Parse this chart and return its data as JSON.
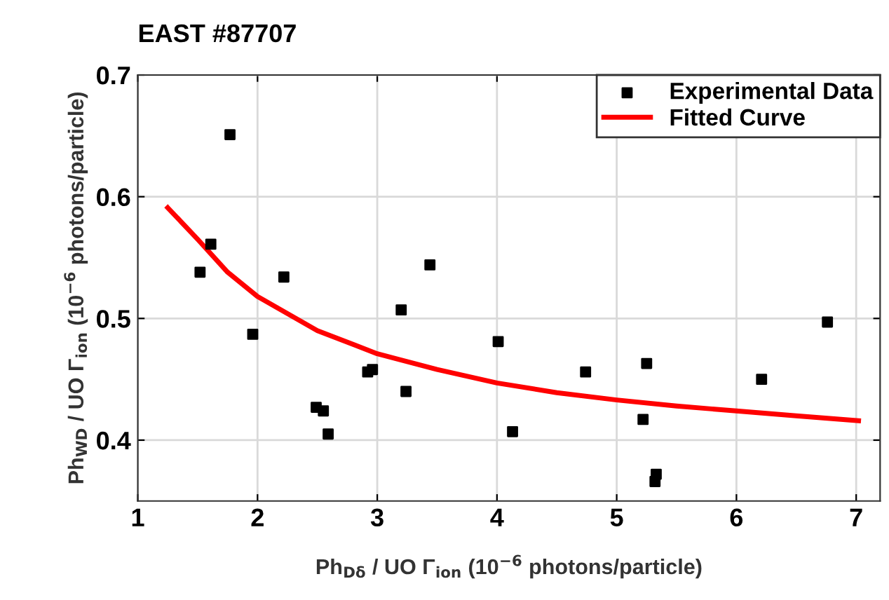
{
  "chart_data": {
    "type": "scatter",
    "title": "EAST #87707",
    "xlabel": "Ph$_{Dδ}$ / UO Γ$_{ion}$ (10$^{−6}$ photons/particle)",
    "ylabel": "Ph$_{WD}$ / UO Γ$_{ion}$ (10$^{−6}$ photons/particle)",
    "xlim": [
      1,
      7.2
    ],
    "ylim": [
      0.35,
      0.7
    ],
    "xticks": [
      1,
      2,
      3,
      4,
      5,
      6,
      7
    ],
    "yticks": [
      0.4,
      0.5,
      0.6,
      0.7
    ],
    "grid": true,
    "legend": "top right",
    "series": [
      {
        "name": "Experimental Data",
        "color": "#000000",
        "marker": "square",
        "x": [
          1.77,
          1.61,
          1.52,
          2.22,
          1.96,
          3.44,
          3.2,
          2.92,
          2.96,
          3.24,
          2.49,
          2.55,
          2.59,
          4.01,
          4.13,
          4.74,
          5.25,
          5.22,
          5.33,
          5.32,
          6.21,
          6.76
        ],
        "values": [
          0.651,
          0.561,
          0.538,
          0.534,
          0.487,
          0.544,
          0.507,
          0.456,
          0.458,
          0.44,
          0.427,
          0.424,
          0.405,
          0.481,
          0.407,
          0.456,
          0.463,
          0.417,
          0.372,
          0.366,
          0.45,
          0.497
        ]
      },
      {
        "name": "Fitted Curve",
        "type": "line",
        "color": "#ff0000",
        "marker": "none",
        "line_style": "solid",
        "x": [
          1.25,
          1.5,
          1.75,
          2,
          2.5,
          3,
          3.5,
          4,
          4.5,
          5,
          5.5,
          6,
          6.5,
          7.02
        ],
        "values": [
          0.591,
          0.565,
          0.538,
          0.518,
          0.49,
          0.471,
          0.458,
          0.447,
          0.439,
          0.433,
          0.428,
          0.424,
          0.42,
          0.416
        ]
      }
    ]
  }
}
